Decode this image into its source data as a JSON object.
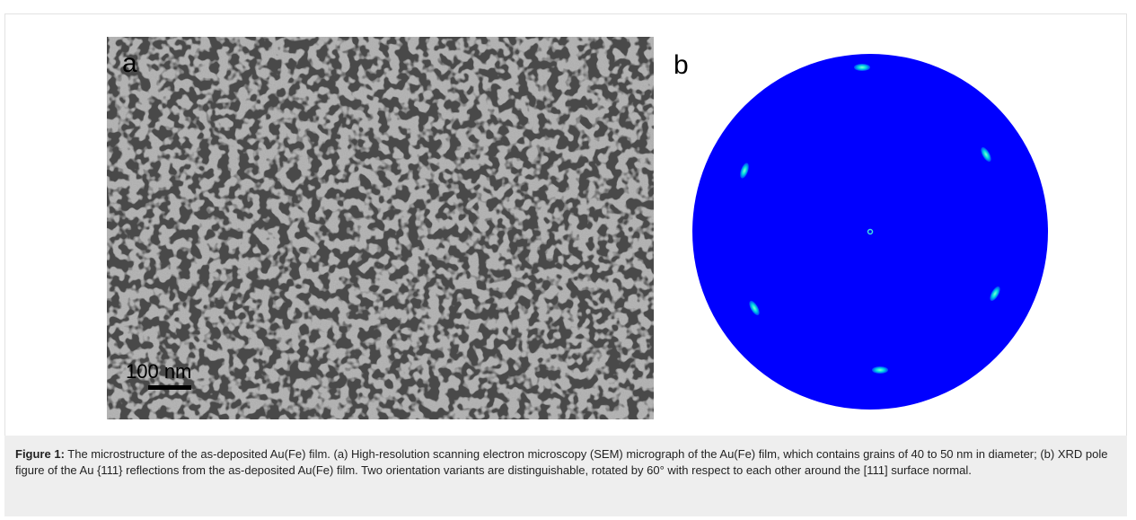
{
  "panels": {
    "a": {
      "label": "a",
      "scale_bar": "100 nm"
    },
    "b": {
      "label": "b"
    }
  },
  "caption": {
    "label": "Figure 1:",
    "text": " The microstructure of the as-deposited Au(Fe) film. (a) High-resolution scanning electron microscopy (SEM) micrograph of the Au(Fe) film, which contains grains of 40 to 50 nm in diameter; (b) XRD pole figure of the Au {111} reflections from the as-deposited Au(Fe) film. Two orientation variants are distinguishable, rotated by 60° with respect to each other around the [111] surface normal."
  }
}
